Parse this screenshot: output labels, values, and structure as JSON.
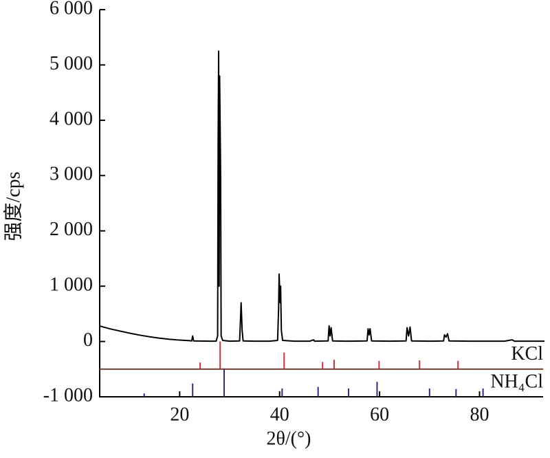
{
  "chart_data": {
    "type": "line",
    "xlabel": "2θ/(°)",
    "ylabel": "强度/cps",
    "xlim": [
      4,
      93
    ],
    "ylim": [
      -1000,
      6000
    ],
    "xticks": [
      20,
      40,
      60,
      80
    ],
    "yticks": [
      {
        "value": -1000,
        "label": "-1 000"
      },
      0,
      {
        "value": 1000,
        "label": "1 000"
      },
      {
        "value": 2000,
        "label": "2 000"
      },
      {
        "value": 3000,
        "label": "3 000"
      },
      {
        "value": 4000,
        "label": "4 000"
      },
      {
        "value": 5000,
        "label": "5 000"
      },
      {
        "value": 6000,
        "label": "6 000"
      }
    ],
    "x": [
      4,
      6,
      8,
      10,
      12,
      14,
      16,
      18,
      20,
      22,
      22.4,
      22.6,
      22.8,
      24,
      26,
      27.3,
      27.6,
      27.7,
      27.8,
      27.9,
      28.0,
      28.2,
      28.3,
      28.6,
      30,
      32.0,
      32.3,
      32.5,
      32.7,
      35,
      38,
      39.6,
      39.8,
      39.9,
      40.1,
      40.2,
      40.35,
      40.6,
      43,
      46,
      46.8,
      47,
      49.7,
      49.9,
      50.1,
      50.3,
      50.6,
      53,
      57.5,
      57.7,
      57.9,
      58.1,
      58.4,
      62,
      65.3,
      65.5,
      65.8,
      66.1,
      66.4,
      70,
      72.8,
      73.0,
      73.3,
      73.6,
      73.9,
      78,
      85,
      86.5,
      87,
      91,
      93
    ],
    "series": [
      {
        "color": "#000000",
        "values": [
          280,
          230,
          190,
          150,
          115,
          85,
          60,
          40,
          25,
          15,
          10,
          100,
          10,
          8,
          5,
          5,
          100,
          3600,
          5250,
          1000,
          4800,
          3000,
          100,
          20,
          5,
          10,
          700,
          200,
          10,
          5,
          5,
          20,
          600,
          1220,
          700,
          1000,
          200,
          20,
          5,
          5,
          30,
          5,
          10,
          280,
          100,
          250,
          10,
          5,
          10,
          230,
          120,
          230,
          10,
          5,
          10,
          250,
          100,
          260,
          10,
          5,
          10,
          120,
          80,
          140,
          10,
          5,
          5,
          30,
          5,
          5,
          5
        ]
      }
    ],
    "reference_patterns": [
      {
        "name": "KCl",
        "color": "#d0303c",
        "baseline": -500,
        "x": [
          24.1,
          28.1,
          40.9,
          48.6,
          50.9,
          59.9,
          68.0,
          75.7
        ],
        "values": [
          -380,
          0,
          -200,
          -370,
          -330,
          -350,
          -340,
          -350
        ]
      },
      {
        "name": "NH₄Cl",
        "color": "#2a2a8a",
        "baseline": -1000,
        "x": [
          12.9,
          22.6,
          28.9,
          40.5,
          47.7,
          53.8,
          59.5,
          70.0,
          75.3,
          80.7
        ],
        "values": [
          -940,
          -760,
          -500,
          -850,
          -820,
          -850,
          -730,
          -850,
          -860,
          -850
        ]
      }
    ]
  }
}
